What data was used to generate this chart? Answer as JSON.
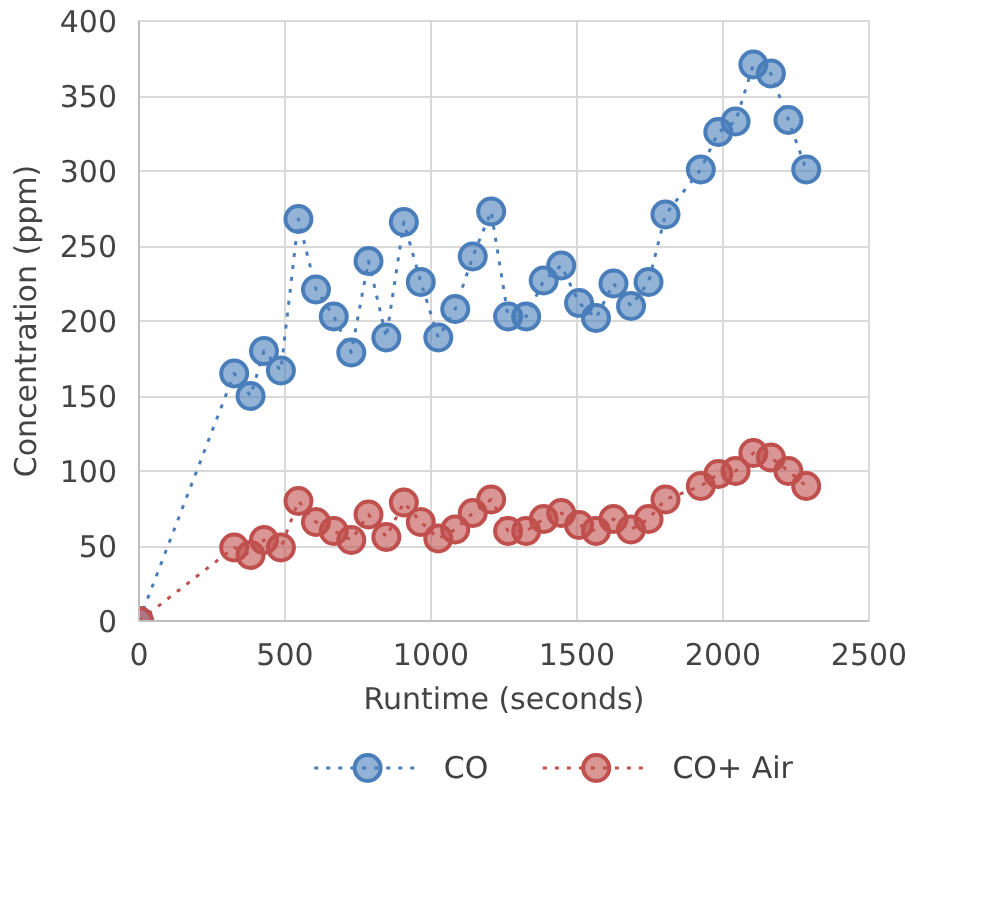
{
  "chart_data": {
    "type": "line",
    "xlabel": "Runtime (seconds)",
    "ylabel": "Concentration (ppm)",
    "xlim": [
      0,
      2500
    ],
    "xticks": [
      0,
      500,
      1000,
      1500,
      2000,
      2500
    ],
    "ylim": [
      0,
      400
    ],
    "yticks": [
      0,
      50,
      100,
      150,
      200,
      250,
      300,
      350,
      400
    ],
    "grid": true,
    "legend": "bottom",
    "marker": "circle",
    "line_style": "dotted",
    "x": [
      0,
      326,
      382,
      428,
      486,
      546,
      606,
      667,
      727,
      786,
      847,
      907,
      965,
      1025,
      1083,
      1143,
      1206,
      1264,
      1326,
      1386,
      1446,
      1507,
      1565,
      1625,
      1685,
      1745,
      1803,
      1924,
      1984,
      2043,
      2104,
      2164,
      2224,
      2285
    ],
    "series": [
      {
        "name": "CO",
        "color": "#4a7ebb",
        "values": [
          0,
          165,
          150,
          180,
          167,
          268,
          221,
          203,
          179,
          240,
          189,
          266,
          226,
          189,
          208,
          243,
          273,
          203,
          203,
          227,
          237,
          212,
          202,
          225,
          210,
          226,
          271,
          301,
          326,
          333,
          371,
          365,
          334,
          301
        ]
      },
      {
        "name": "CO+ Air",
        "color": "#c0504d",
        "values": [
          0,
          49,
          44,
          54,
          49,
          80,
          66,
          60,
          54,
          71,
          56,
          79,
          66,
          55,
          61,
          72,
          81,
          60,
          60,
          68,
          72,
          64,
          60,
          68,
          61,
          68,
          81,
          90,
          98,
          100,
          112,
          109,
          100,
          90
        ]
      }
    ]
  }
}
